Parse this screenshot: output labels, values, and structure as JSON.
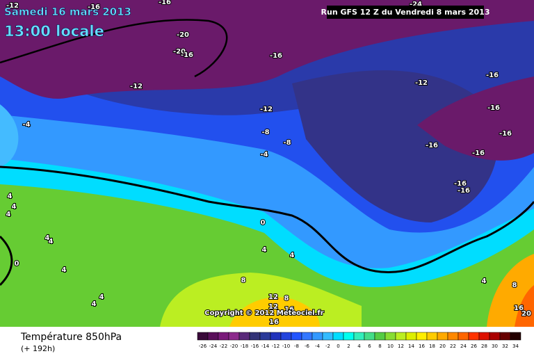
{
  "header": {
    "date": "Samedi 16 mars 2013",
    "time": "13:00 locale",
    "run": "Run GFS 12 Z du Vendredi 8 mars 2013"
  },
  "copyright": "Copyright © 2012 Meteociel.fr",
  "footer": {
    "title": "Température 850hPa",
    "lead": "(+ 192h)"
  },
  "scale": {
    "labels": [
      -26,
      -24,
      -22,
      -20,
      -18,
      -16,
      -14,
      -12,
      -10,
      -8,
      -6,
      -4,
      -2,
      0,
      2,
      4,
      6,
      8,
      10,
      12,
      14,
      16,
      18,
      20,
      22,
      24,
      26,
      28,
      30,
      32,
      34
    ],
    "colors": [
      "#3a0a3a",
      "#5a0f5a",
      "#7a1a7a",
      "#8c2a8c",
      "#5a2a7a",
      "#333377",
      "#2a3a99",
      "#2233bb",
      "#2244dd",
      "#2255ff",
      "#3377ff",
      "#3399ff",
      "#33bbff",
      "#00ddff",
      "#00ffee",
      "#33eebb",
      "#44dd88",
      "#55cc44",
      "#88dd33",
      "#bbee22",
      "#ddee00",
      "#ffee00",
      "#ffcc00",
      "#ffaa00",
      "#ff8800",
      "#ff6600",
      "#ff3300",
      "#dd1100",
      "#aa0000",
      "#660000",
      "#220000"
    ]
  },
  "contour_labels": [
    -12,
    -16,
    -24,
    -16,
    -20,
    -20,
    -16,
    -16,
    -12,
    -12,
    -16,
    -16,
    -12,
    -4,
    -8,
    -16,
    -8,
    -16,
    -16,
    -4,
    -16,
    -16,
    4,
    4,
    4,
    0,
    4,
    4,
    4,
    4,
    0,
    4,
    8,
    4,
    8,
    4,
    4,
    12,
    8,
    16,
    16,
    12,
    16,
    20
  ]
}
